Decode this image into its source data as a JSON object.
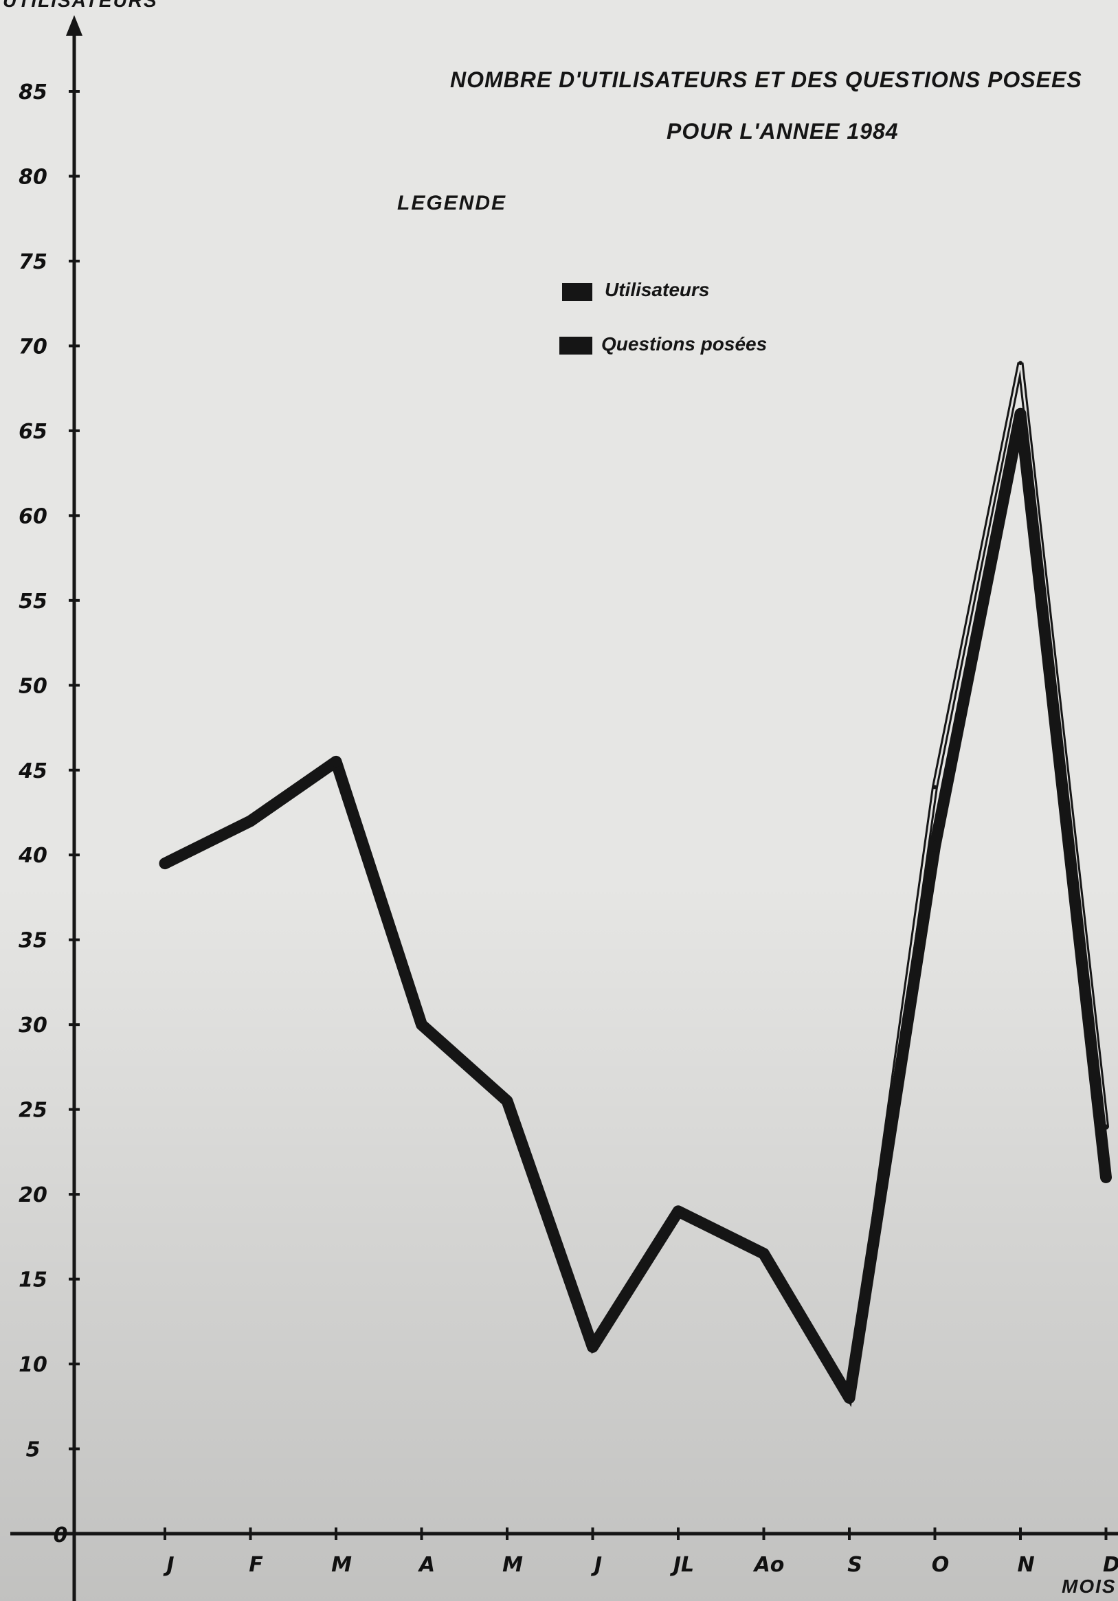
{
  "chart_data": {
    "type": "line",
    "title": "NOMBRE D'UTILISATEURS ET DES QUESTIONS POSEES",
    "subtitle": "POUR L'ANNEE 1984",
    "ylabel": "UTILISATEURS",
    "xlabel": "MOIS",
    "categories": [
      "J",
      "F",
      "M",
      "A",
      "M",
      "J",
      "JL",
      "Ao",
      "S",
      "O",
      "N",
      "D"
    ],
    "yticks": [
      "5",
      "10",
      "15",
      "20",
      "25",
      "30",
      "35",
      "40",
      "45",
      "50",
      "55",
      "60",
      "65",
      "70",
      "75",
      "80",
      "85"
    ],
    "origin_label": "0",
    "ylim": [
      0,
      85
    ],
    "legend": {
      "title": "LEGENDE",
      "position": "top-center",
      "items": [
        "Utilisateurs",
        "Questions posées"
      ]
    },
    "series": [
      {
        "name": "Questions posées",
        "color": "#151515",
        "style": "thick",
        "values": [
          39.5,
          42,
          45.5,
          30,
          25.5,
          11,
          19,
          16.5,
          8,
          40.5,
          66,
          21
        ]
      },
      {
        "name": "Utilisateurs",
        "color": "#151515",
        "style": "double-thin",
        "values": [
          39.5,
          42,
          45.5,
          30,
          25.5,
          11,
          19,
          16.5,
          8,
          44,
          69,
          24
        ]
      }
    ],
    "grid": false
  }
}
